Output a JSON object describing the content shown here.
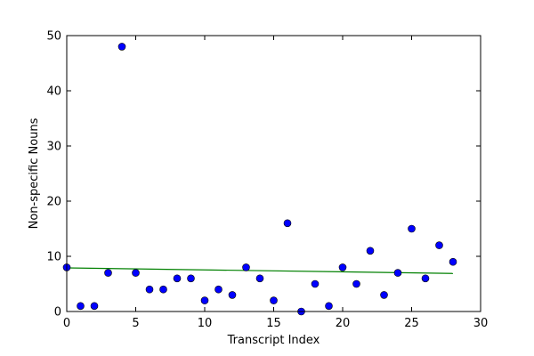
{
  "chart_data": {
    "type": "scatter",
    "xlabel": "Transcript Index",
    "ylabel": "Non-specific Nouns",
    "xlim": [
      0,
      30
    ],
    "ylim": [
      0,
      50
    ],
    "x_ticks": [
      0,
      5,
      10,
      15,
      20,
      25,
      30
    ],
    "y_ticks": [
      0,
      10,
      20,
      30,
      40,
      50
    ],
    "grid": false,
    "points": {
      "x": [
        0,
        1,
        2,
        3,
        4,
        5,
        6,
        7,
        8,
        9,
        10,
        11,
        12,
        13,
        14,
        15,
        16,
        17,
        18,
        19,
        20,
        21,
        22,
        23,
        24,
        25,
        26,
        27,
        28
      ],
      "y": [
        8,
        1,
        1,
        7,
        48,
        7,
        4,
        4,
        6,
        6,
        2,
        4,
        3,
        8,
        6,
        2,
        16,
        0,
        5,
        1,
        8,
        5,
        11,
        3,
        7,
        15,
        6,
        12,
        9
      ],
      "color": "#0000ff"
    },
    "trend_line": {
      "x": [
        0,
        28
      ],
      "y": [
        7.9,
        6.9
      ],
      "color": "#008000"
    }
  }
}
